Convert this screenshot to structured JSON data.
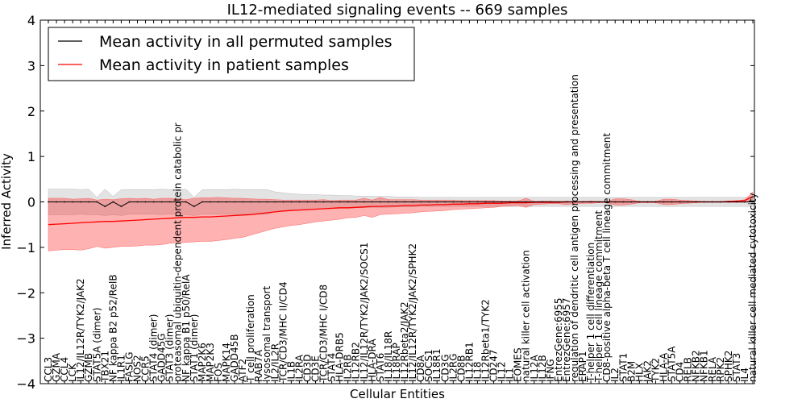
{
  "chart_data": {
    "type": "line",
    "title": "IL12-mediated signaling events -- 669 samples",
    "xlabel": "Cellular Entities",
    "ylabel": "Inferred Activity",
    "ylim": [
      -4,
      4
    ],
    "yticks": [
      "4",
      "3",
      "2",
      "1",
      "0",
      "−1",
      "−2",
      "−3",
      "−4"
    ],
    "ytick_values": [
      4,
      3,
      2,
      1,
      0,
      -1,
      -2,
      -3,
      -4
    ],
    "grid": false,
    "legend": {
      "placement": "top-left",
      "entries": [
        {
          "label": "Mean activity in all permuted samples",
          "color": "#000000"
        },
        {
          "label": "Mean activity in patient samples",
          "color": "#ff0000"
        }
      ]
    },
    "colors": {
      "permuted_line": "#000000",
      "permuted_band": "#cccccc",
      "patient_line": "#ff0000",
      "patient_band": "#ff9999"
    },
    "categories": [
      "CCL3",
      "GZMA",
      "CCL4",
      "LCK",
      "IL12/IL12R/TYK2/JAK2",
      "GZMB",
      "STAT5A (dimer)",
      "TBX21",
      "NF kappa B2 p52/RelB",
      "IL1R1",
      "FASLG",
      "NOS2",
      "CCR5",
      "STAT4 (dimer)",
      "GADD45G",
      "STAT3 (dimer)",
      "proteasomal ubiquitin-dependent protein catabolic pr",
      "NF kappa B1 p50/RelA",
      "STAT1 (dimer)",
      "MAP2K6",
      "MAP2K3",
      "FOS",
      "MAPK14",
      "GADD45B",
      "ATF2",
      "T cell proliferation",
      "RAB7A",
      "lysosomal transport",
      "IL2/IL2R",
      "TCR/CD3/MHC II/CD4",
      "IL1B",
      "IL2RA",
      "CD3D",
      "CD3E",
      "TCR/CD3/MHC I/CD8",
      "STAT4",
      "HLA-DRB5",
      "IL2RB",
      "IL12RB2",
      "IL12/IL12R/TYK2/JAK2/SOCS1",
      "HLA-DRA",
      "STAT6",
      "IL18/IL18R",
      "IL18RAP",
      "IL12Rbeta2/JAK2",
      "IL12/IL12R/TYK2/JAK2/SPHK2",
      "CD8A",
      "SOCS1",
      "IL18R1",
      "CD3G",
      "IL2RG",
      "CD8B",
      "IL12RB1",
      "IL18",
      "IL12Rbeta1/TYK2",
      "CD247",
      "IL12",
      "IL1",
      "EOMES",
      "natural killer cell activation",
      "IL12A",
      "IL12B",
      "IFNG",
      "EntrezGene:6955",
      "EntrezGene:6957",
      "regulation of dendritic cell antigen processing and presentation",
      "ERAP1",
      "T-helper 1 cell differentiation",
      "T-helper 1 cell lineage commitment",
      "CD8-positive alpha-beta T cell lineage commitment",
      "IL2",
      "STAT1",
      "B2M",
      "HLX",
      "JAK2",
      "TYK2",
      "HLA-A",
      "STAT5A",
      "CD4",
      "RELB",
      "NFKB2",
      "NFKB1",
      "RELA",
      "RPK2",
      "SPHK2",
      "STAT3",
      "IL4",
      "natural killer cell mediated cytotoxicity"
    ],
    "series": [
      {
        "name": "Mean activity in patient samples",
        "color": "#ff0000",
        "values": [
          -0.5,
          -0.49,
          -0.48,
          -0.47,
          -0.46,
          -0.45,
          -0.44,
          -0.43,
          -0.43,
          -0.42,
          -0.41,
          -0.4,
          -0.39,
          -0.38,
          -0.37,
          -0.36,
          -0.35,
          -0.34,
          -0.34,
          -0.33,
          -0.33,
          -0.32,
          -0.31,
          -0.3,
          -0.29,
          -0.28,
          -0.26,
          -0.24,
          -0.22,
          -0.2,
          -0.19,
          -0.18,
          -0.17,
          -0.16,
          -0.15,
          -0.14,
          -0.13,
          -0.13,
          -0.12,
          -0.11,
          -0.1,
          -0.1,
          -0.09,
          -0.09,
          -0.08,
          -0.08,
          -0.07,
          -0.07,
          -0.06,
          -0.06,
          -0.05,
          -0.05,
          -0.04,
          -0.04,
          -0.03,
          -0.03,
          -0.03,
          -0.02,
          -0.02,
          -0.02,
          -0.01,
          -0.01,
          -0.01,
          -0.01,
          0.0,
          0.0,
          0.0,
          0.0,
          0.0,
          0.0,
          0.0,
          0.0,
          0.0,
          0.0,
          0.0,
          0.0,
          0.0,
          0.0,
          0.0,
          0.0,
          0.0,
          0.0,
          0.0,
          0.0,
          0.01,
          0.02,
          0.03,
          0.12
        ],
        "upper": [
          0.08,
          0.08,
          0.08,
          0.06,
          0.07,
          0.08,
          0.04,
          0.06,
          0.05,
          0.07,
          0.08,
          0.07,
          0.08,
          0.06,
          0.08,
          0.08,
          0.07,
          0.05,
          0.08,
          0.09,
          0.09,
          0.1,
          0.09,
          0.08,
          0.08,
          0.07,
          0.06,
          0.06,
          0.05,
          0.04,
          0.04,
          0.04,
          0.04,
          0.04,
          0.05,
          0.03,
          0.04,
          0.04,
          0.04,
          0.08,
          0.04,
          0.1,
          0.05,
          0.05,
          0.05,
          0.05,
          0.04,
          0.04,
          0.04,
          0.04,
          0.04,
          0.03,
          0.03,
          0.03,
          0.03,
          0.03,
          0.02,
          0.02,
          0.02,
          0.08,
          0.01,
          0.02,
          0.02,
          0.01,
          0.02,
          0.01,
          0.01,
          0.02,
          0.01,
          0.01,
          0.07,
          0.07,
          0.05,
          0.01,
          0.01,
          0.01,
          0.06,
          0.06,
          0.04,
          0.03,
          0.02,
          0.01,
          0.01,
          0.01,
          0.02,
          0.02,
          0.05,
          0.22
        ],
        "lower": [
          -1.08,
          -1.06,
          -1.05,
          -1.05,
          -1.06,
          -1.03,
          -0.98,
          -1.02,
          -1.0,
          -0.98,
          -0.98,
          -0.97,
          -0.95,
          -0.95,
          -0.94,
          -0.91,
          -0.9,
          -0.89,
          -0.88,
          -0.87,
          -0.87,
          -0.85,
          -0.83,
          -0.8,
          -0.78,
          -0.73,
          -0.68,
          -0.63,
          -0.58,
          -0.55,
          -0.52,
          -0.5,
          -0.47,
          -0.44,
          -0.42,
          -0.4,
          -0.38,
          -0.35,
          -0.34,
          -0.3,
          -0.34,
          -0.28,
          -0.27,
          -0.26,
          -0.25,
          -0.24,
          -0.22,
          -0.21,
          -0.2,
          -0.19,
          -0.17,
          -0.16,
          -0.15,
          -0.14,
          -0.13,
          -0.12,
          -0.1,
          -0.09,
          -0.08,
          -0.12,
          -0.06,
          -0.05,
          -0.04,
          -0.04,
          -0.06,
          -0.04,
          -0.03,
          -0.03,
          -0.02,
          -0.02,
          -0.07,
          -0.07,
          -0.05,
          -0.02,
          -0.02,
          -0.02,
          -0.06,
          -0.06,
          -0.04,
          -0.03,
          -0.02,
          -0.01,
          -0.01,
          -0.01,
          -0.01,
          -0.01,
          -0.01,
          0.0
        ]
      },
      {
        "name": "Mean activity in all permuted samples",
        "color": "#000000",
        "values": [
          0.0,
          0.0,
          0.0,
          0.0,
          0.0,
          0.0,
          0.0,
          -0.1,
          0.0,
          -0.1,
          0.0,
          0.0,
          0.0,
          0.0,
          0.0,
          0.0,
          0.0,
          0.0,
          -0.1,
          0.0,
          0.0,
          0.0,
          0.0,
          0.0,
          0.0,
          0.0,
          0.0,
          0.0,
          0.0,
          0.0,
          0.0,
          0.0,
          0.0,
          0.0,
          0.0,
          0.0,
          0.0,
          0.0,
          0.0,
          0.0,
          0.0,
          0.0,
          0.0,
          0.0,
          0.0,
          0.0,
          0.0,
          0.0,
          0.0,
          0.0,
          0.0,
          0.0,
          0.0,
          0.0,
          0.0,
          0.0,
          0.0,
          0.0,
          0.0,
          0.0,
          0.0,
          0.0,
          0.0,
          0.0,
          0.0,
          0.0,
          0.0,
          0.0,
          0.0,
          0.0,
          0.0,
          0.0,
          0.0,
          0.0,
          0.0,
          0.0,
          0.0,
          0.0,
          0.0,
          0.0,
          0.0,
          0.0,
          0.0,
          0.0,
          0.0,
          0.0,
          0.0,
          0.0
        ],
        "upper": [
          0.28,
          0.28,
          0.28,
          0.28,
          0.27,
          0.28,
          0.1,
          0.28,
          0.12,
          0.27,
          0.27,
          0.27,
          0.27,
          0.27,
          0.28,
          0.27,
          0.27,
          0.28,
          0.1,
          0.27,
          0.27,
          0.27,
          0.27,
          0.28,
          0.27,
          0.27,
          0.27,
          0.27,
          0.22,
          0.2,
          0.18,
          0.17,
          0.16,
          0.16,
          0.15,
          0.15,
          0.14,
          0.14,
          0.13,
          0.13,
          0.12,
          0.12,
          0.12,
          0.11,
          0.11,
          0.11,
          0.1,
          0.1,
          0.1,
          0.1,
          0.1,
          0.1,
          0.1,
          0.1,
          0.1,
          0.1,
          0.1,
          0.1,
          0.1,
          0.1,
          0.1,
          0.1,
          0.1,
          0.1,
          0.1,
          0.1,
          0.1,
          0.1,
          0.1,
          0.1,
          0.1,
          0.1,
          0.1,
          0.1,
          0.1,
          0.1,
          0.1,
          0.1,
          0.1,
          0.1,
          0.1,
          0.1,
          0.1,
          0.1,
          0.1,
          0.1,
          0.1,
          0.1
        ],
        "lower": [
          -0.28,
          -0.28,
          -0.28,
          -0.28,
          -0.27,
          -0.28,
          -0.28,
          -0.3,
          -0.28,
          -0.3,
          -0.27,
          -0.27,
          -0.27,
          -0.27,
          -0.28,
          -0.27,
          -0.27,
          -0.28,
          -0.3,
          -0.27,
          -0.27,
          -0.27,
          -0.27,
          -0.28,
          -0.27,
          -0.27,
          -0.27,
          -0.27,
          -0.22,
          -0.2,
          -0.18,
          -0.17,
          -0.16,
          -0.16,
          -0.15,
          -0.15,
          -0.14,
          -0.14,
          -0.13,
          -0.13,
          -0.12,
          -0.12,
          -0.12,
          -0.11,
          -0.11,
          -0.11,
          -0.1,
          -0.1,
          -0.1,
          -0.1,
          -0.1,
          -0.1,
          -0.1,
          -0.1,
          -0.1,
          -0.1,
          -0.1,
          -0.1,
          -0.1,
          -0.1,
          -0.1,
          -0.1,
          -0.1,
          -0.1,
          -0.1,
          -0.1,
          -0.1,
          -0.1,
          -0.1,
          -0.1,
          -0.1,
          -0.1,
          -0.1,
          -0.1,
          -0.1,
          -0.1,
          -0.1,
          -0.1,
          -0.1,
          -0.1,
          -0.1,
          -0.1,
          -0.1,
          -0.1,
          -0.1,
          -0.1,
          -0.1,
          -0.1
        ]
      }
    ]
  }
}
